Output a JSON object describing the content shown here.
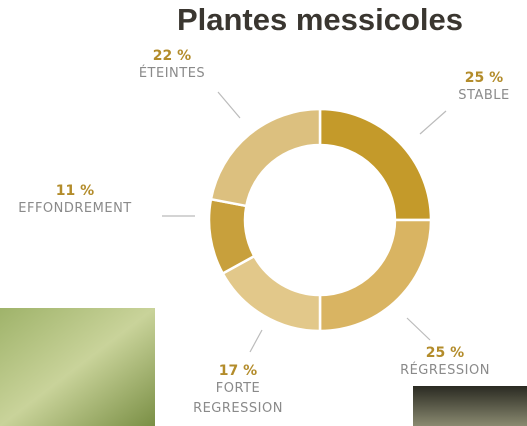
{
  "chart_data": {
    "type": "donut",
    "title": "Plantes messicoles",
    "categories": [
      "STABLE",
      "RÉGRESSION",
      "FORTE REGRESSION",
      "EFFONDREMENT",
      "ÉTEINTES"
    ],
    "values": [
      25,
      25,
      17,
      11,
      22
    ],
    "value_labels": [
      "25 %",
      "25 %",
      "17 %",
      "11 %",
      "22 %"
    ],
    "colors": [
      "#c49a2a",
      "#d9b462",
      "#e2c88a",
      "#c8a03c",
      "#dcc07f"
    ]
  }
}
